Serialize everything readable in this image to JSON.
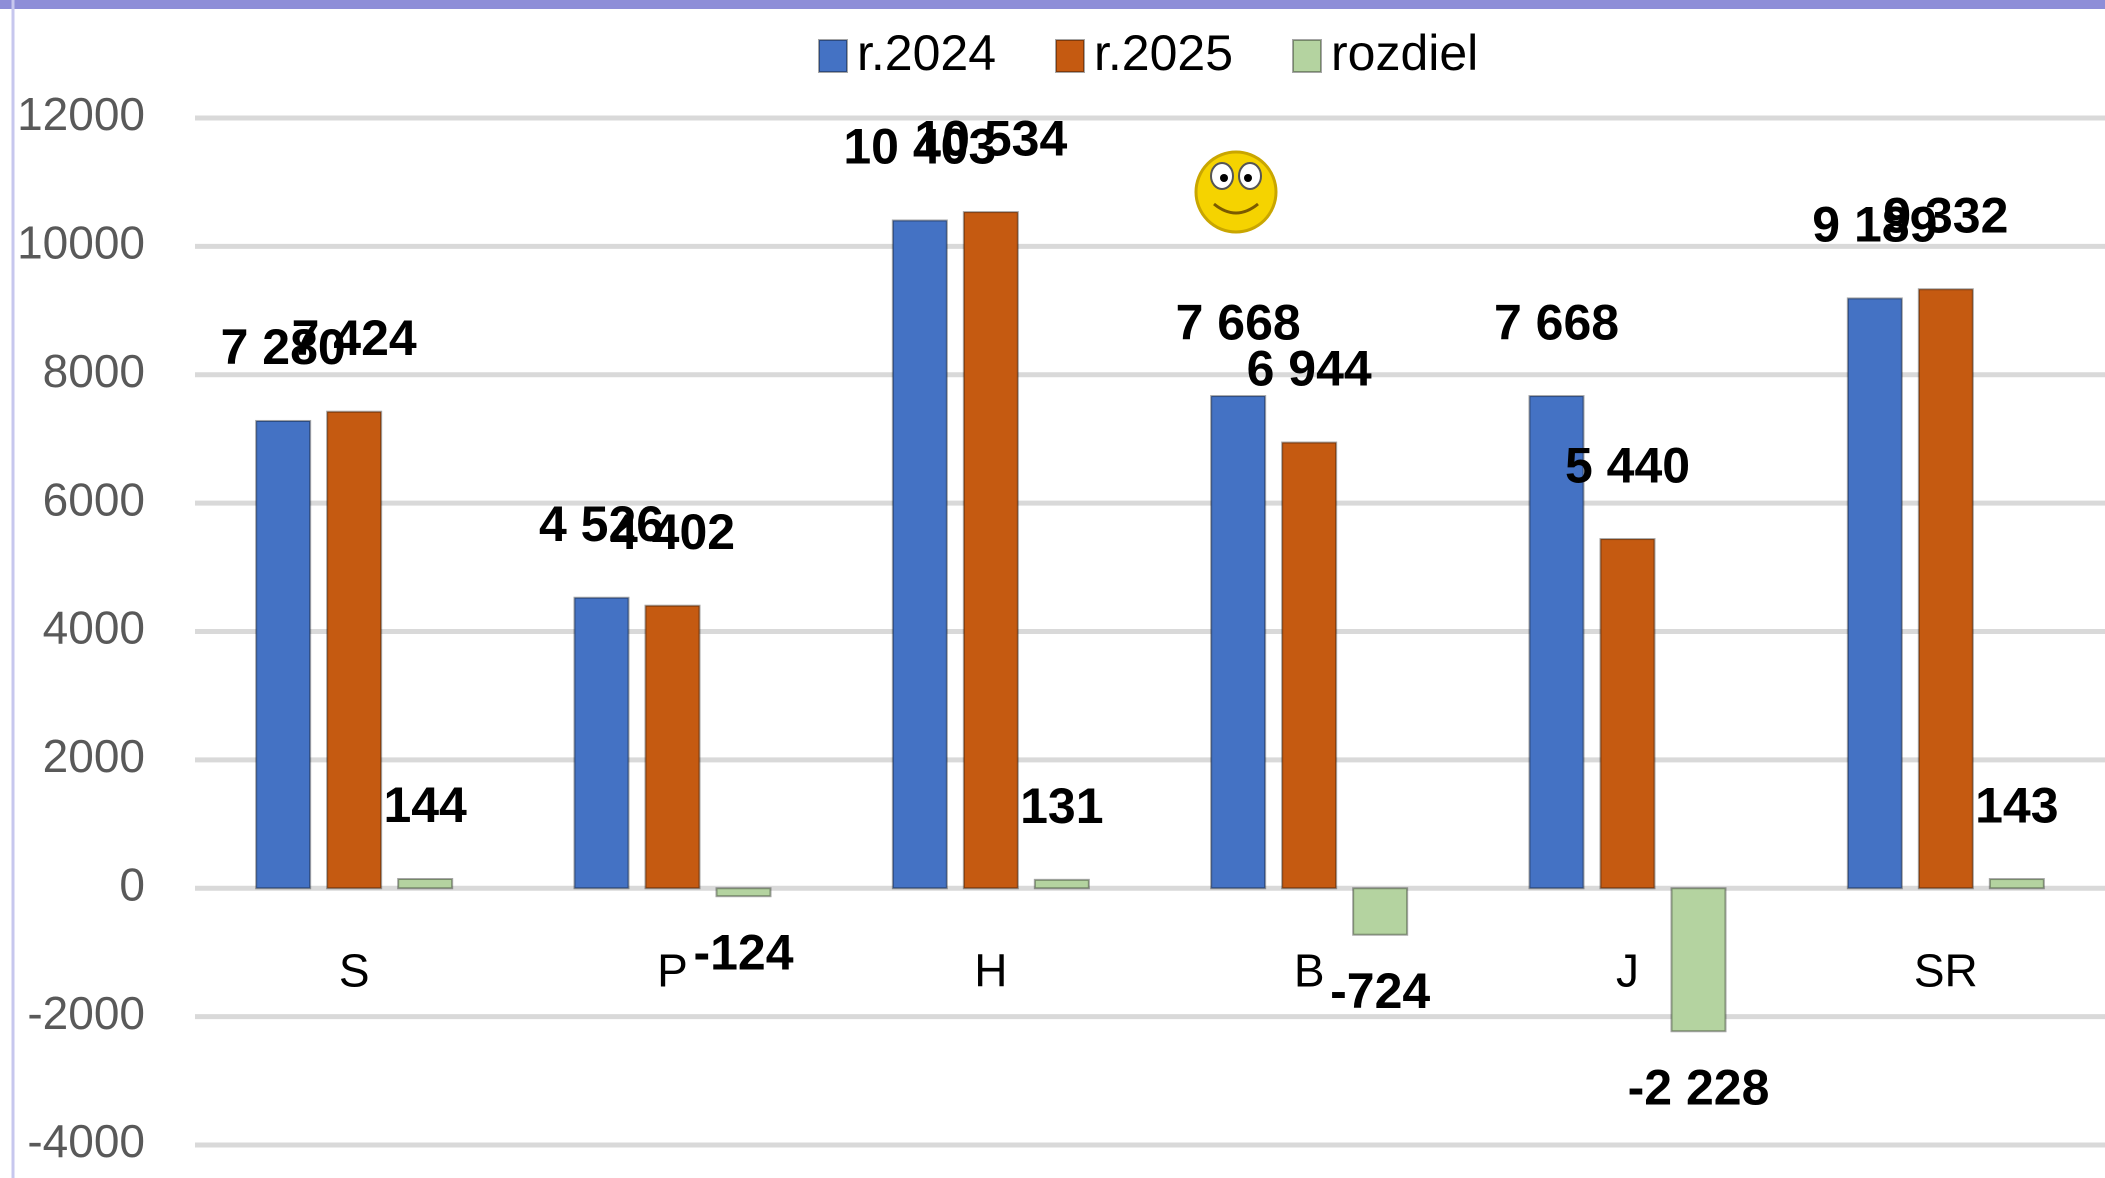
{
  "chart_data": {
    "type": "bar",
    "categories": [
      "S",
      "P",
      "H",
      "B",
      "J",
      "SR"
    ],
    "series": [
      {
        "name": "r.2024",
        "color": "#4472c4",
        "values": [
          7280,
          4526,
          10403,
          7668,
          7668,
          9189
        ],
        "value_labels": [
          "7 280",
          "4 526",
          "10 403",
          "7 668",
          "7 668",
          "9 189"
        ]
      },
      {
        "name": "r.2025",
        "color": "#c55a11",
        "values": [
          7424,
          4402,
          10534,
          6944,
          5440,
          9332
        ],
        "value_labels": [
          "7 424",
          "4 402",
          "10 534",
          "6 944",
          "5 440",
          "9 332"
        ]
      },
      {
        "name": "rozdiel",
        "color": "#b4d3a0",
        "values": [
          144,
          -124,
          131,
          -724,
          -2228,
          143
        ],
        "value_labels": [
          "144",
          "-124",
          "131",
          "-724",
          "-2 228",
          "143"
        ]
      }
    ],
    "ylim": [
      -4000,
      12000
    ],
    "yticks": [
      -4000,
      -2000,
      0,
      2000,
      4000,
      6000,
      8000,
      10000,
      12000
    ],
    "grid": true,
    "legend": "top"
  }
}
